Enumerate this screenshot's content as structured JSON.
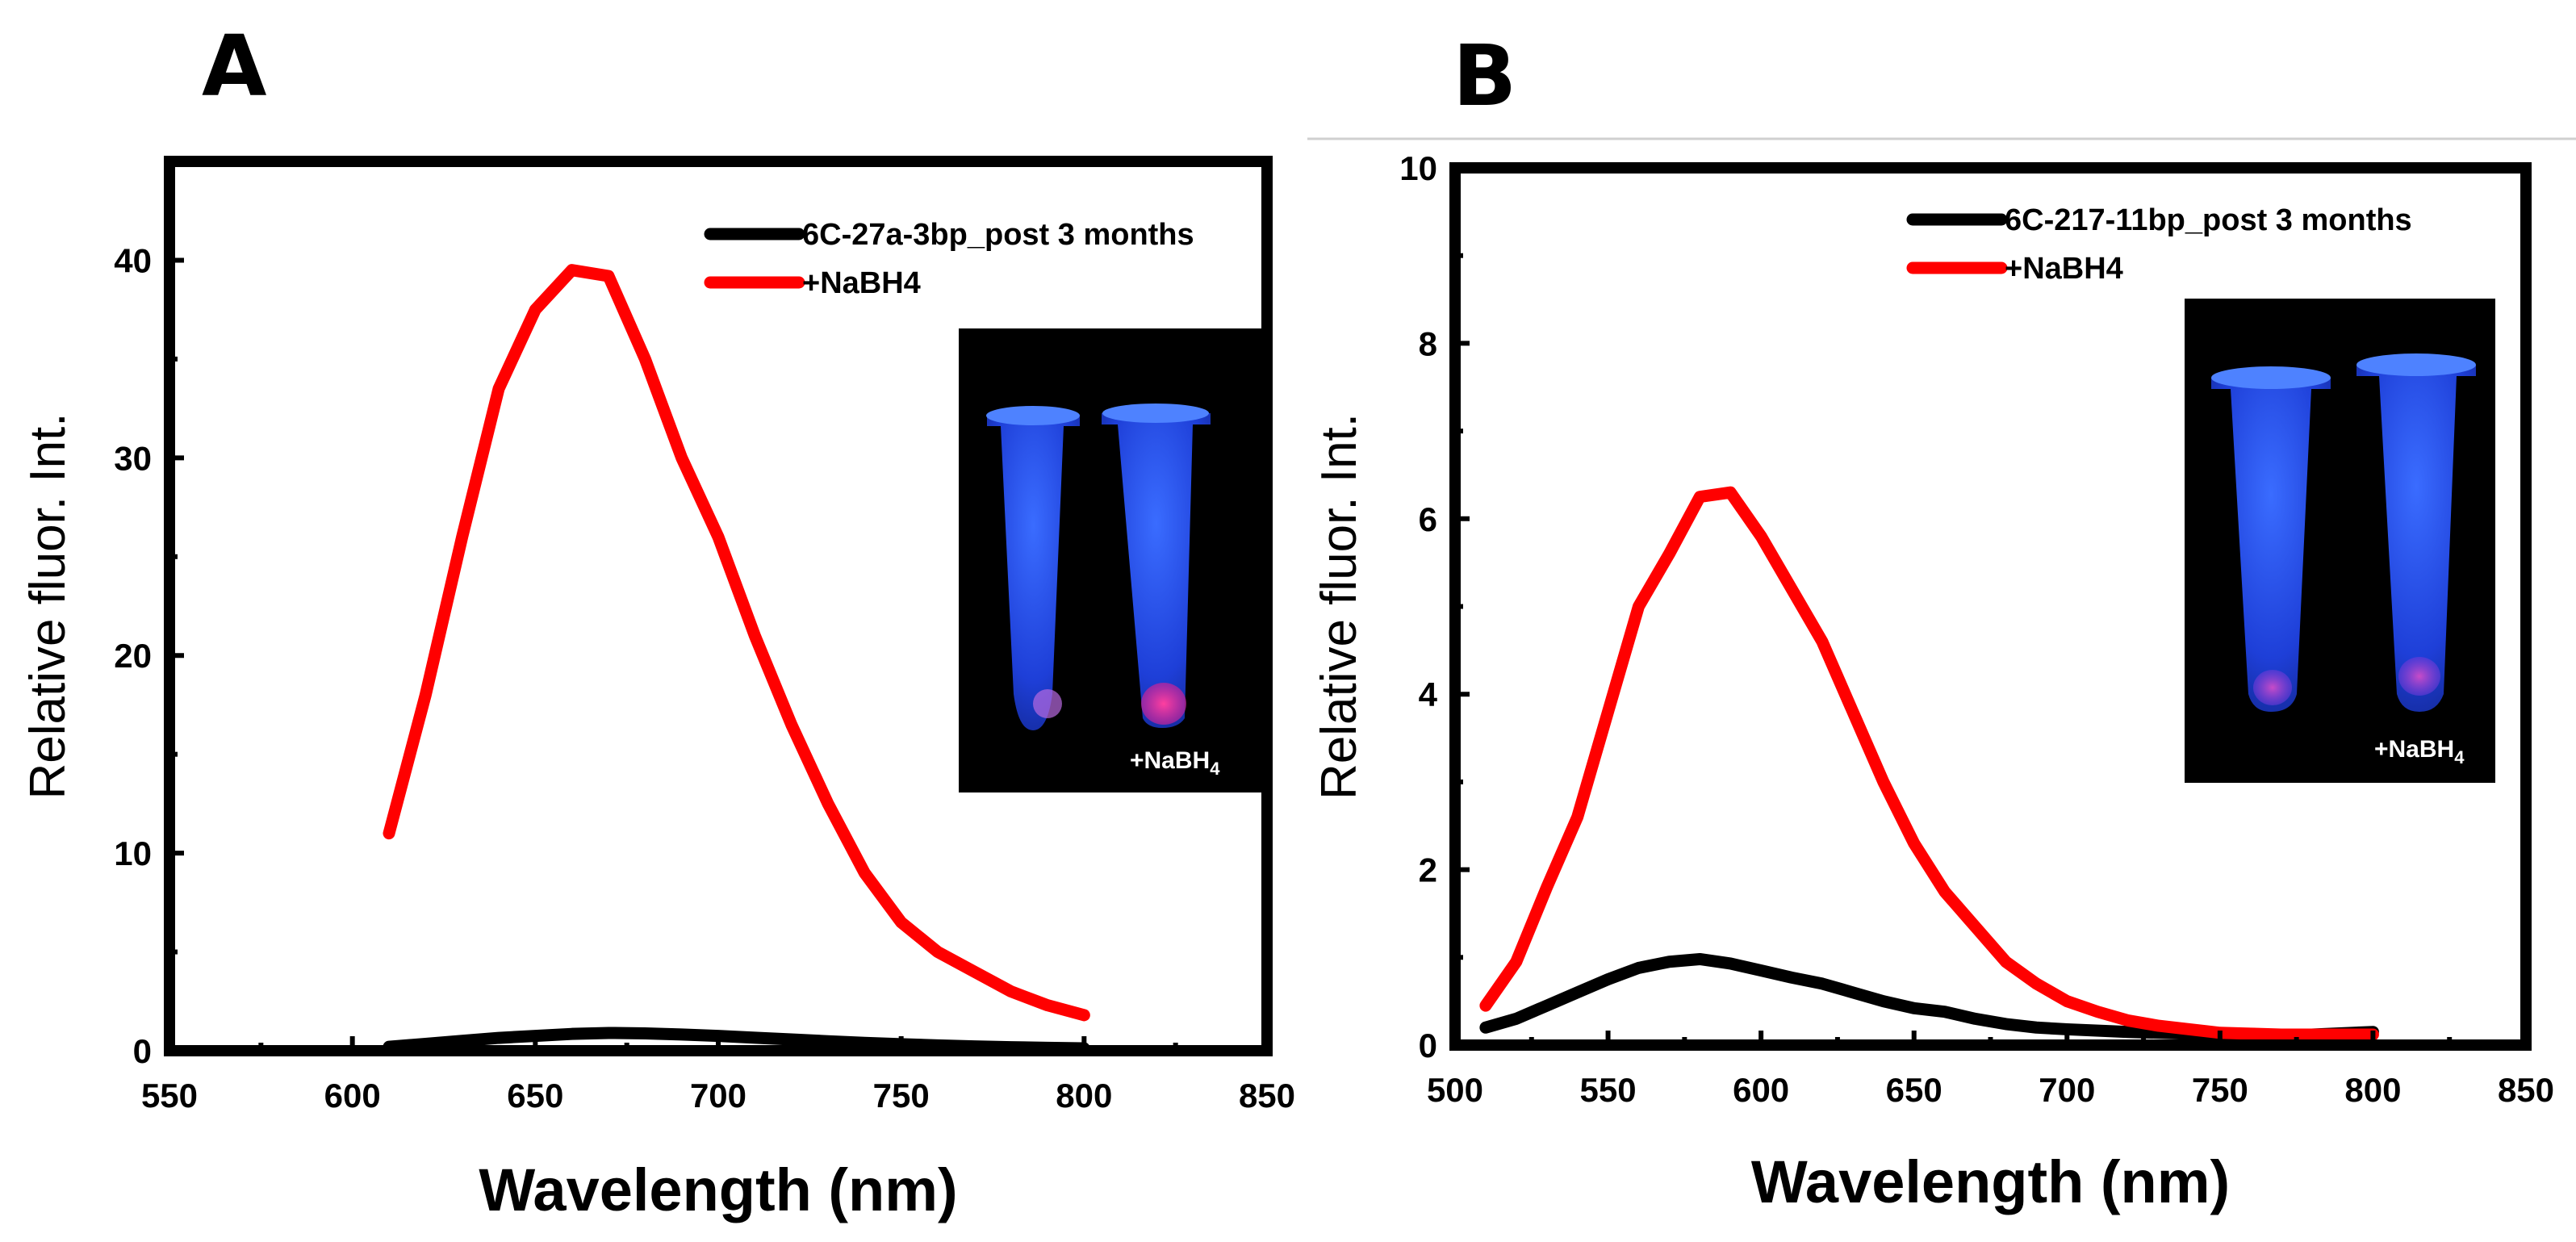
{
  "chart_data": [
    {
      "panel": "A",
      "type": "line",
      "xlabel": "Wavelength (nm)",
      "ylabel": "Relative fluor. Int.",
      "xlim": [
        550,
        850
      ],
      "ylim": [
        0,
        45
      ],
      "xticks": [
        550,
        600,
        650,
        700,
        750,
        800,
        850
      ],
      "yticks": [
        0,
        10,
        20,
        30,
        40
      ],
      "legend_position": "top-right",
      "series": [
        {
          "name": "6C-27a-3bp_post 3 months",
          "color": "#000000",
          "x": [
            610,
            620,
            630,
            640,
            650,
            660,
            670,
            680,
            690,
            700,
            710,
            720,
            730,
            740,
            750,
            760,
            770,
            780,
            790,
            800
          ],
          "y": [
            0.2,
            0.35,
            0.5,
            0.65,
            0.75,
            0.85,
            0.9,
            0.88,
            0.82,
            0.75,
            0.66,
            0.57,
            0.48,
            0.4,
            0.33,
            0.27,
            0.22,
            0.18,
            0.15,
            0.12
          ]
        },
        {
          "name": "+NaBH4",
          "color": "#ff0000",
          "x": [
            610,
            620,
            630,
            640,
            650,
            660,
            670,
            680,
            690,
            700,
            710,
            720,
            730,
            740,
            750,
            760,
            770,
            780,
            790,
            800
          ],
          "y": [
            11,
            18,
            26,
            33.5,
            37.5,
            39.5,
            39.2,
            35,
            30,
            26,
            21,
            16.5,
            12.5,
            9,
            6.5,
            5,
            4,
            3,
            2.3,
            1.8
          ]
        }
      ],
      "inset": {
        "label_main": "+NaBH",
        "label_sub": "4"
      }
    },
    {
      "panel": "B",
      "type": "line",
      "xlabel": "Wavelength (nm)",
      "ylabel": "Relative fluor. Int.",
      "xlim": [
        500,
        850
      ],
      "ylim": [
        0,
        10
      ],
      "xticks": [
        500,
        550,
        600,
        650,
        700,
        750,
        800,
        850
      ],
      "yticks": [
        0,
        2,
        4,
        6,
        8,
        10
      ],
      "legend_position": "top-right",
      "series": [
        {
          "name": "6C-217-11bp_post 3 months",
          "color": "#000000",
          "x": [
            510,
            520,
            530,
            540,
            550,
            560,
            570,
            580,
            590,
            600,
            610,
            620,
            630,
            640,
            650,
            660,
            670,
            680,
            690,
            700,
            720,
            740,
            760,
            780,
            800
          ],
          "y": [
            0.2,
            0.3,
            0.45,
            0.6,
            0.75,
            0.88,
            0.95,
            0.98,
            0.93,
            0.85,
            0.77,
            0.7,
            0.6,
            0.5,
            0.42,
            0.38,
            0.3,
            0.24,
            0.2,
            0.18,
            0.15,
            0.13,
            0.12,
            0.12,
            0.15
          ]
        },
        {
          "name": "+NaBH4",
          "color": "#ff0000",
          "x": [
            510,
            520,
            530,
            540,
            550,
            560,
            570,
            580,
            590,
            600,
            610,
            620,
            630,
            640,
            650,
            660,
            670,
            680,
            690,
            700,
            710,
            720,
            730,
            740,
            750,
            760,
            770,
            780,
            790,
            800
          ],
          "y": [
            0.45,
            0.95,
            1.8,
            2.6,
            3.8,
            5,
            5.6,
            6.25,
            6.3,
            5.8,
            5.2,
            4.6,
            3.8,
            3.0,
            2.3,
            1.75,
            1.35,
            0.95,
            0.7,
            0.5,
            0.38,
            0.28,
            0.22,
            0.18,
            0.14,
            0.13,
            0.12,
            0.12,
            0.12,
            0.12
          ]
        }
      ],
      "inset": {
        "label_main": "+NaBH",
        "label_sub": "4"
      }
    }
  ]
}
